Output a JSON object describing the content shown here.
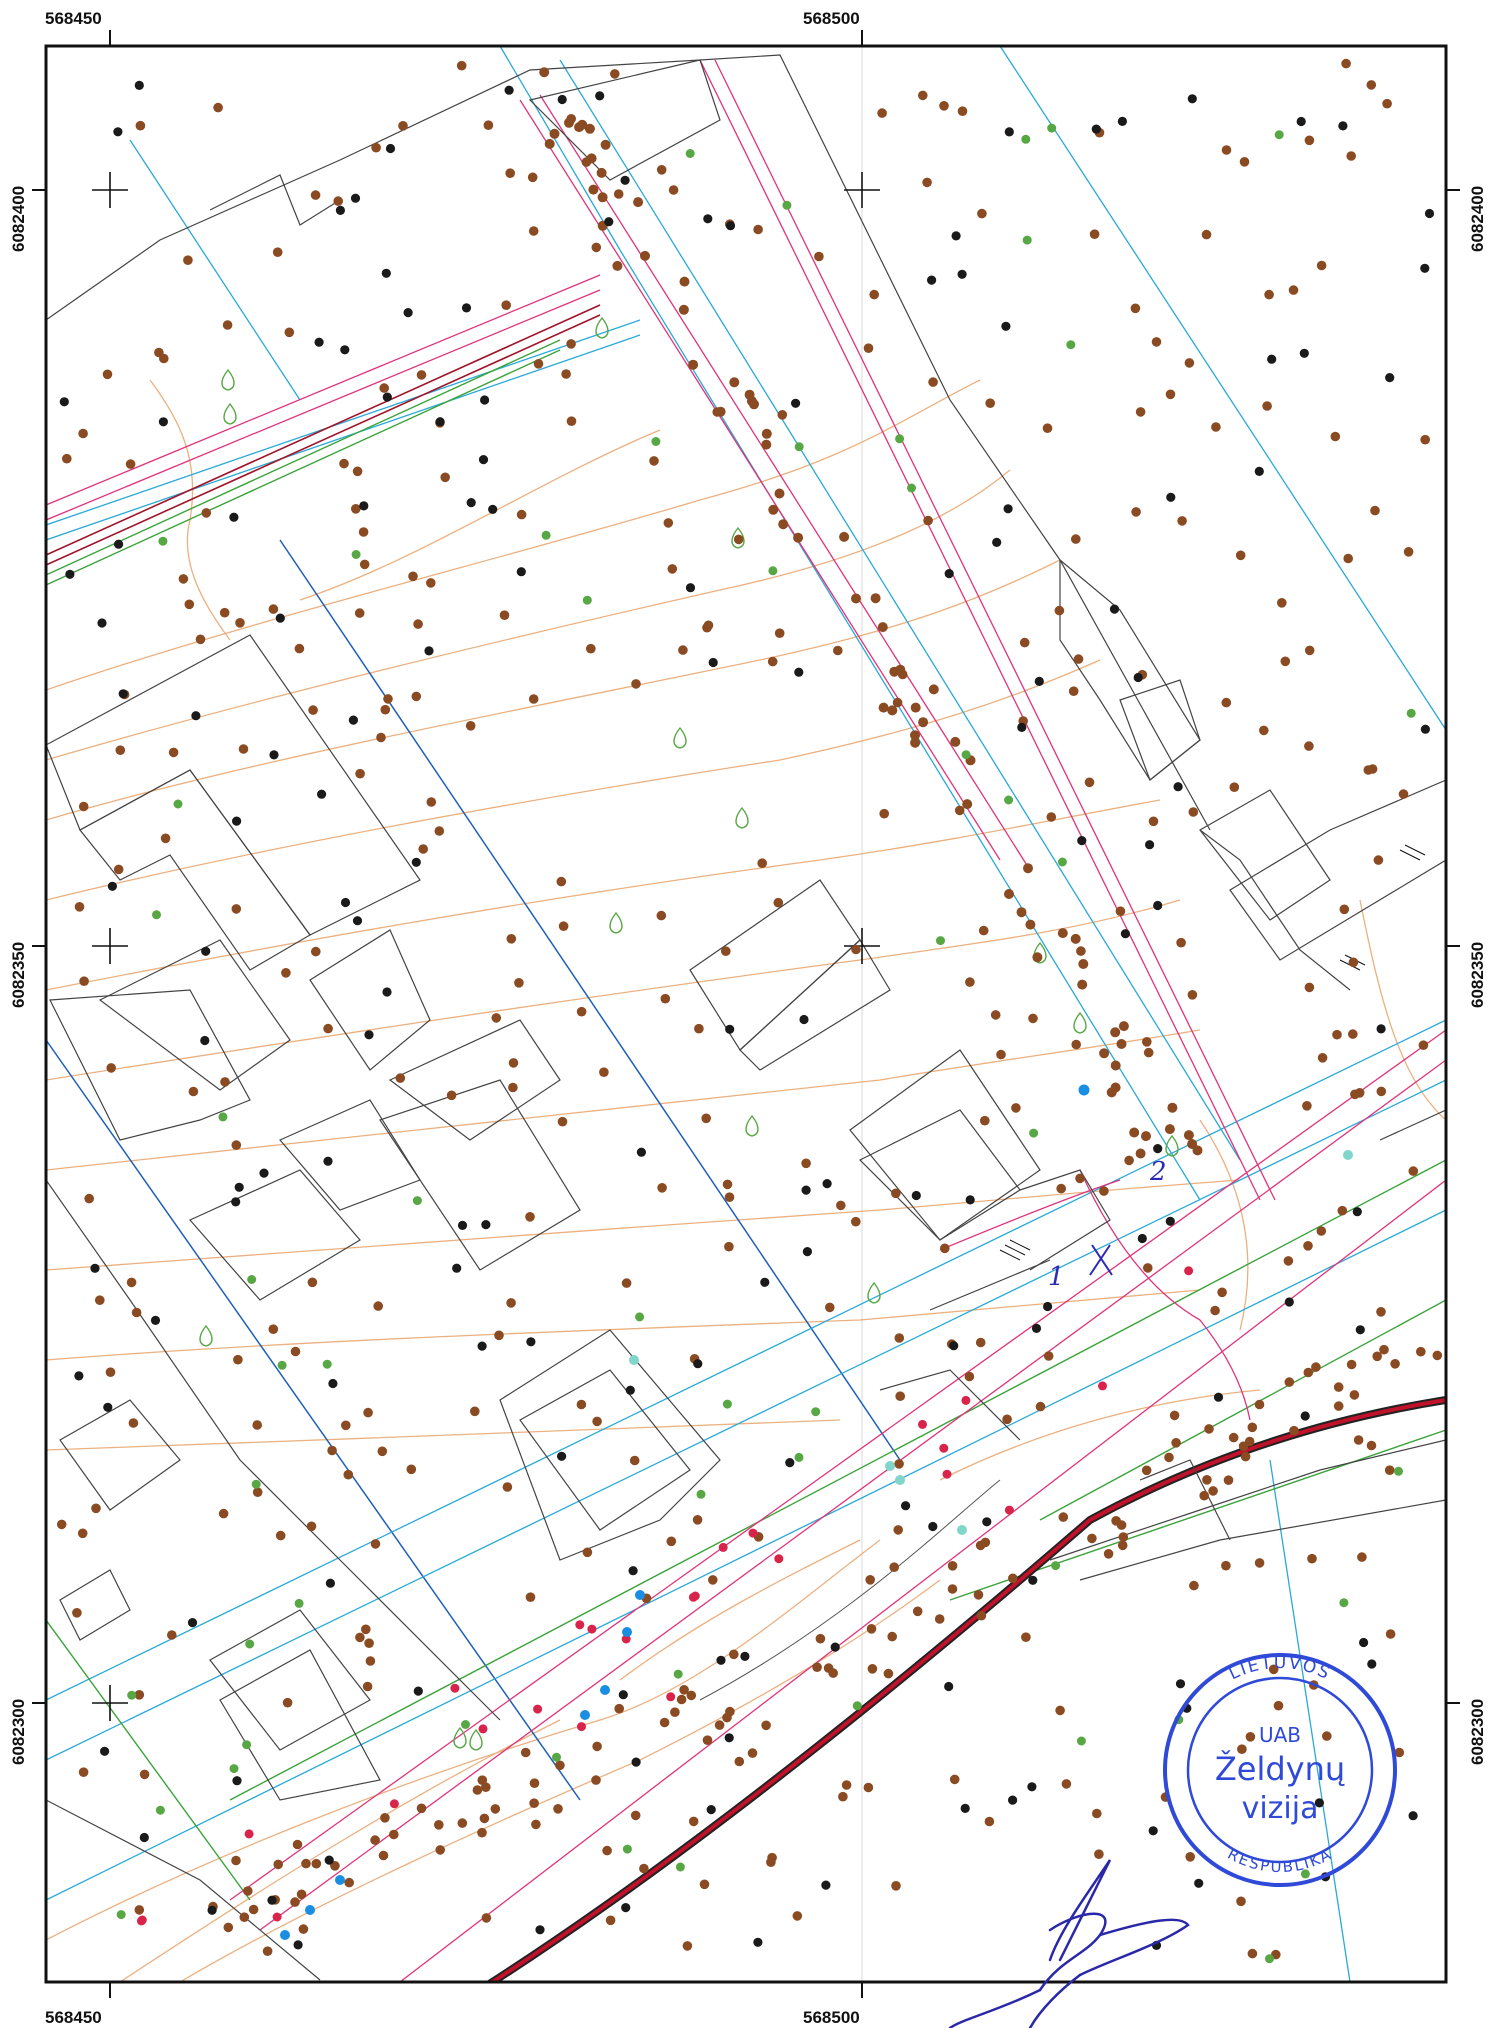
{
  "map": {
    "x_labels": [
      "568450",
      "568500"
    ],
    "y_labels": [
      "6082400",
      "6082350",
      "6082300"
    ],
    "annotations": [
      "1",
      "2"
    ],
    "stamp": {
      "top_text": "LIETUVOS",
      "line1": "UAB",
      "line2": "Želdynų",
      "line3": "vizija",
      "bottom_text": "RESPUBLIKA"
    },
    "colors": {
      "brown_point": "#8a4a22",
      "black_point": "#1a1a1a",
      "green_point": "#57a845",
      "red_point": "#d8244a",
      "blue_point": "#1a8ee0",
      "cyan_point": "#7fd6c9",
      "contour": "#e8a36a",
      "cadastre": "#444444",
      "utility_cyan": "#29a9d8",
      "utility_magenta": "#e0337a",
      "utility_green": "#3aa33a",
      "road_red": "#c1122b",
      "stamp_blue": "#2f49d8",
      "signature_blue": "#2a28a8"
    }
  }
}
